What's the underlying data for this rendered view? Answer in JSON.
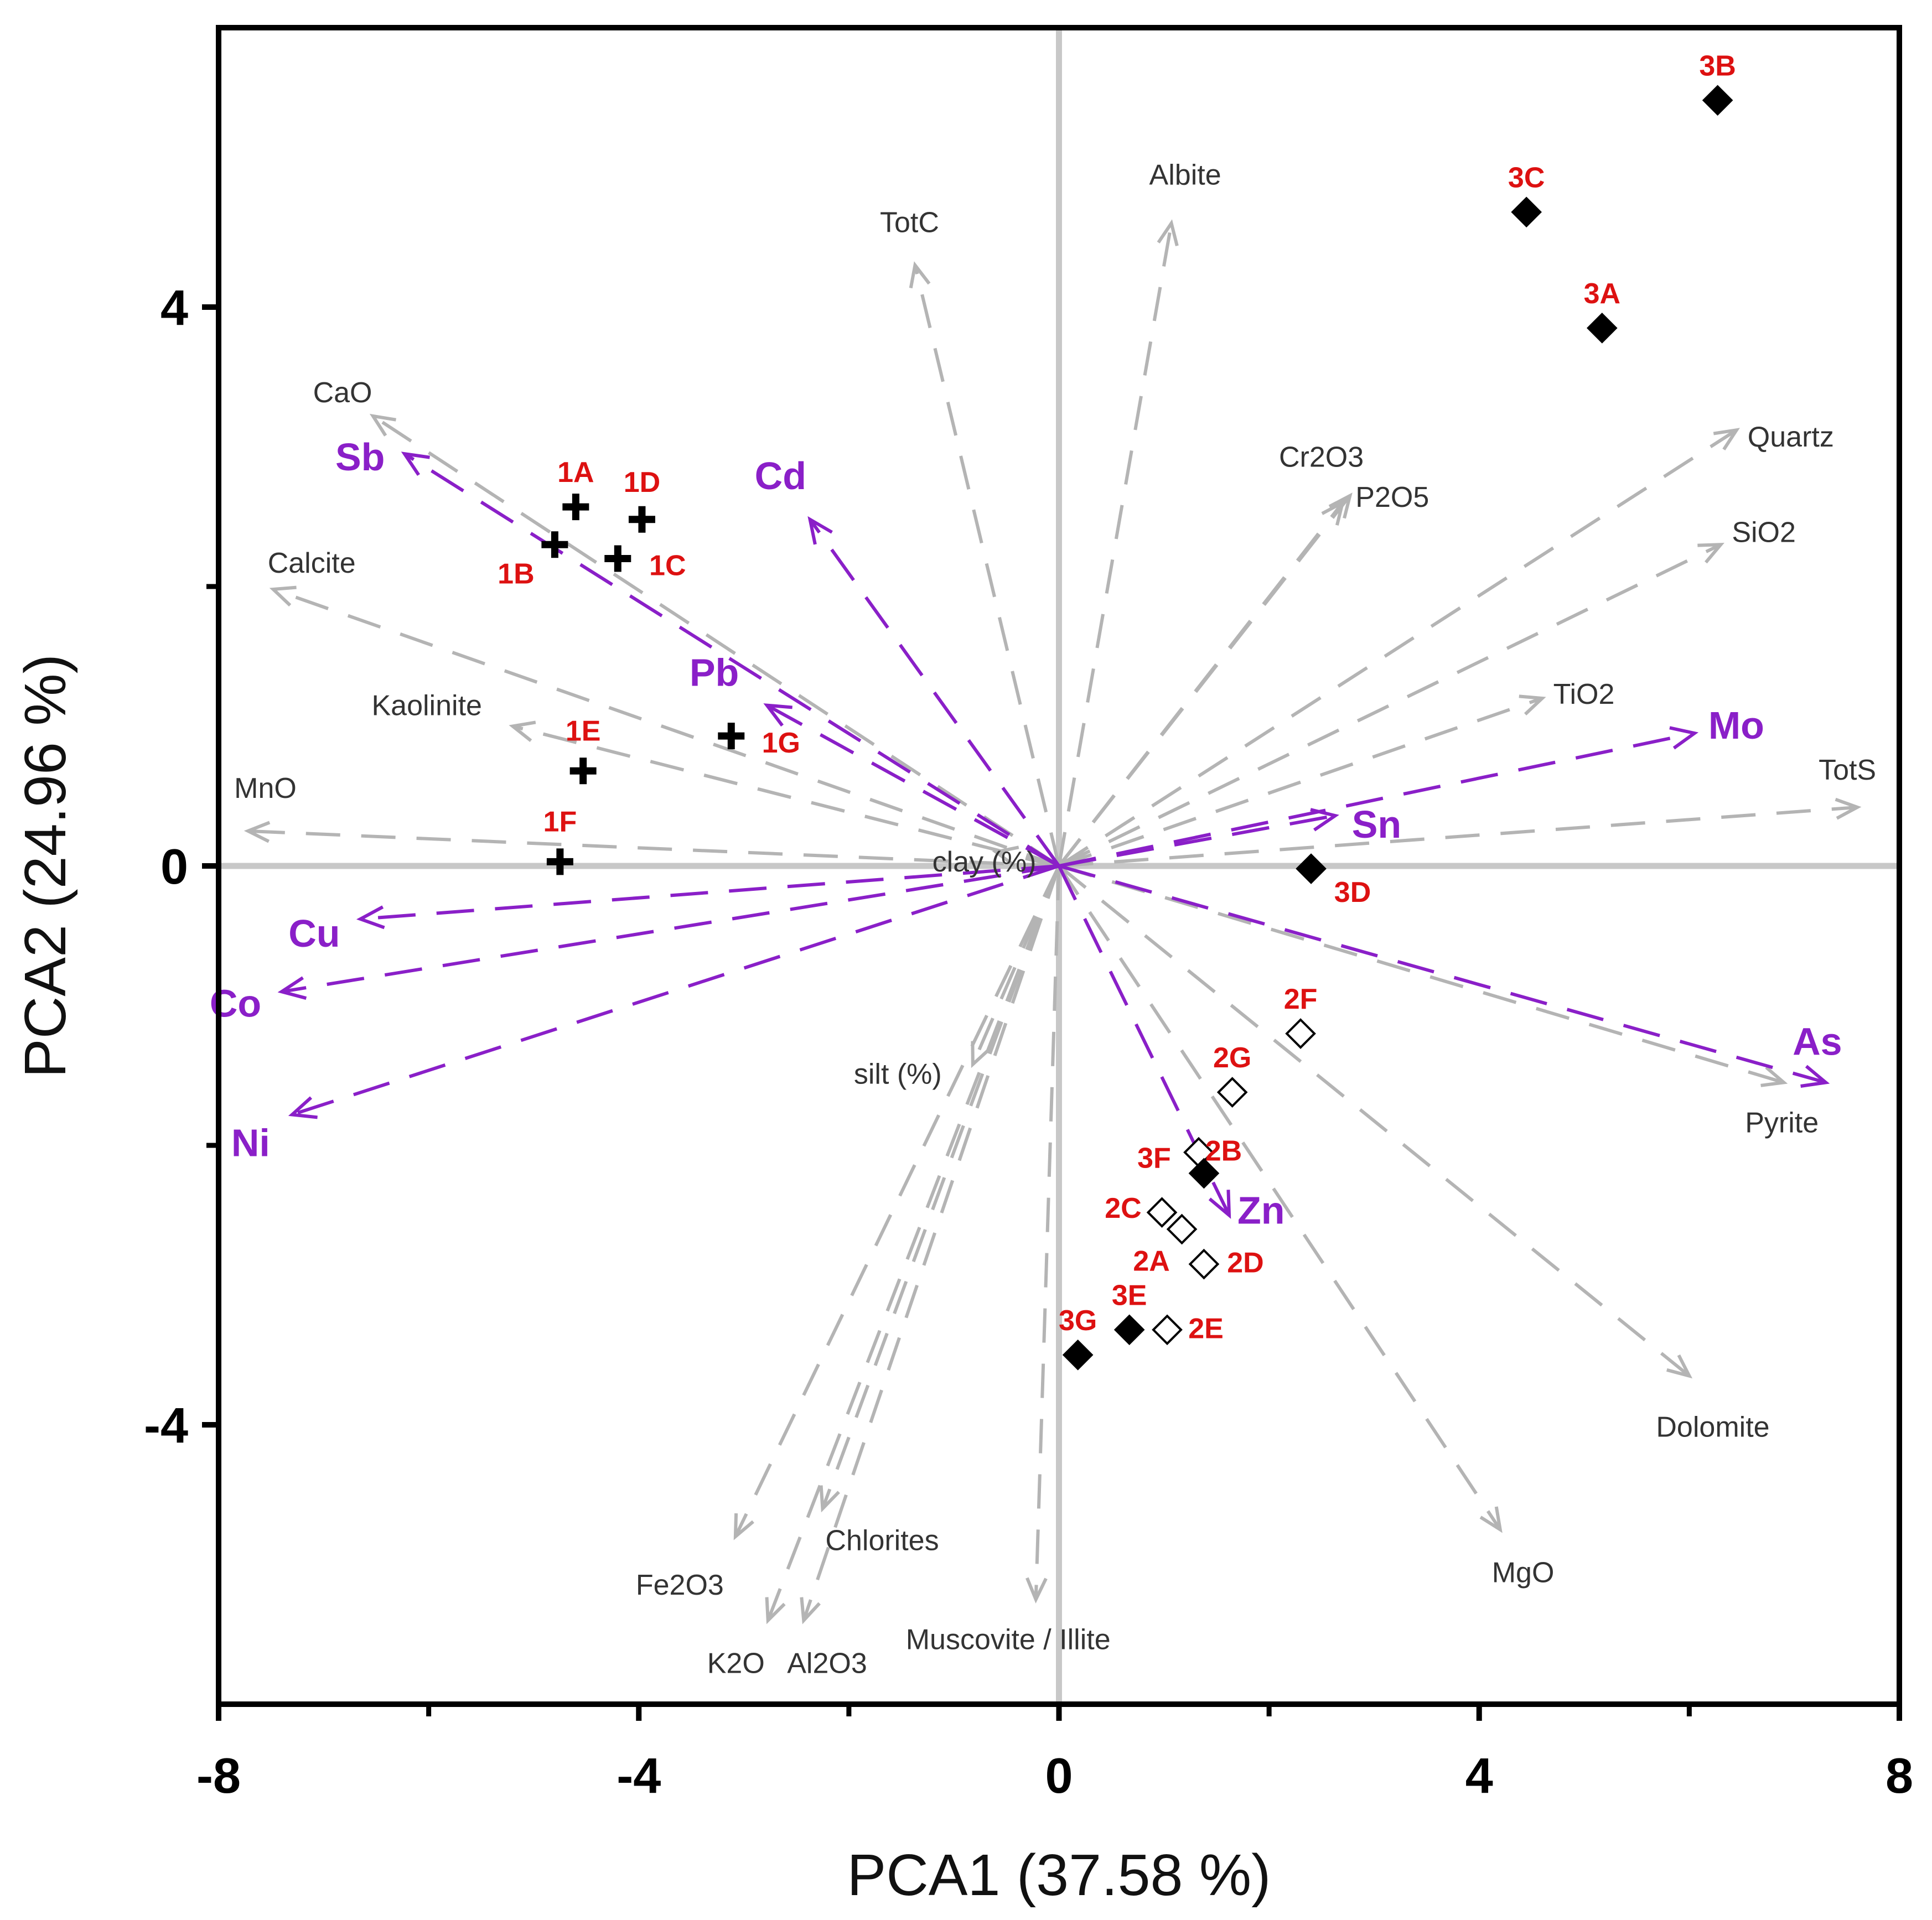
{
  "colors": {
    "frame": "#000000",
    "background": "#ffffff",
    "zero_line": "#c8c8c8",
    "variable_arrow": "#b4b4b4",
    "metal_arrow": "#8a1fc8",
    "metal_label": "#8a1fc8",
    "sample_label": "#dd1111",
    "variable_label": "#333333"
  },
  "chart_data": {
    "type": "scatter",
    "subtype": "pca-biplot",
    "title": "",
    "xlabel": "PCA1 (37.58 %)",
    "ylabel": "PCA2 (24.96 %)",
    "xlim": [
      -8,
      8
    ],
    "ylim": [
      -6,
      6
    ],
    "x_ticks": [
      -8,
      -4,
      0,
      4,
      8
    ],
    "x_tick_labels": [
      "-8",
      "-4",
      "0",
      "4",
      "8"
    ],
    "x_minor_ticks": [
      -6,
      -2,
      2,
      6
    ],
    "y_ticks": [
      4,
      0,
      -4
    ],
    "y_tick_labels": [
      "4",
      "0",
      "-4"
    ],
    "y_minor_ticks": [
      2,
      -2
    ],
    "zero_lines": true,
    "variable_vectors": [
      {
        "name": "Albite",
        "x": 1.07,
        "y": 4.6
      },
      {
        "name": "TotC",
        "x": -1.37,
        "y": 4.3
      },
      {
        "name": "CaO",
        "x": -6.53,
        "y": 3.22
      },
      {
        "name": "Calcite",
        "x": -7.48,
        "y": 1.98
      },
      {
        "name": "Kaolinite",
        "x": -5.2,
        "y": 1.0
      },
      {
        "name": "MnO",
        "x": -7.72,
        "y": 0.25
      },
      {
        "name": "clay (%)",
        "x": -0.6,
        "y": 0.1
      },
      {
        "name": "Cr2O3",
        "x": 2.7,
        "y": 2.6
      },
      {
        "name": "P2O5",
        "x": 2.77,
        "y": 2.65
      },
      {
        "name": "Quartz",
        "x": 6.45,
        "y": 3.12
      },
      {
        "name": "SiO2",
        "x": 6.3,
        "y": 2.3
      },
      {
        "name": "TiO2",
        "x": 4.6,
        "y": 1.2
      },
      {
        "name": "TotS",
        "x": 7.6,
        "y": 0.42
      },
      {
        "name": "Pyrite",
        "x": 6.9,
        "y": -1.55
      },
      {
        "name": "Dolomite",
        "x": 6.0,
        "y": -3.65
      },
      {
        "name": "MgO",
        "x": 4.2,
        "y": -4.75
      },
      {
        "name": "Muscovite / Illite",
        "x": -0.22,
        "y": -5.25
      },
      {
        "name": "Chlorites",
        "x": -2.25,
        "y": -4.6
      },
      {
        "name": "Fe2O3",
        "x": -3.08,
        "y": -4.8
      },
      {
        "name": "K2O",
        "x": -2.77,
        "y": -5.4
      },
      {
        "name": "Al2O3",
        "x": -2.43,
        "y": -5.4
      },
      {
        "name": "silt (%)",
        "x": -0.82,
        "y": -1.42
      }
    ],
    "metal_vectors": [
      {
        "name": "Sb",
        "x": -6.23,
        "y": 2.95
      },
      {
        "name": "Cd",
        "x": -2.37,
        "y": 2.48
      },
      {
        "name": "Pb",
        "x": -2.78,
        "y": 1.15
      },
      {
        "name": "Mo",
        "x": 6.05,
        "y": 0.95
      },
      {
        "name": "Sn",
        "x": 2.63,
        "y": 0.36
      },
      {
        "name": "Cu",
        "x": -6.65,
        "y": -0.38
      },
      {
        "name": "Co",
        "x": -7.4,
        "y": -0.9
      },
      {
        "name": "Ni",
        "x": -7.3,
        "y": -1.78
      },
      {
        "name": "As",
        "x": 7.3,
        "y": -1.55
      },
      {
        "name": "Zn",
        "x": 1.62,
        "y": -2.5
      }
    ],
    "samples": [
      {
        "name": "1A",
        "x": -4.6,
        "y": 2.57,
        "group": "1",
        "marker": "plus"
      },
      {
        "name": "1B",
        "x": -4.8,
        "y": 2.3,
        "group": "1",
        "marker": "plus"
      },
      {
        "name": "1C",
        "x": -4.2,
        "y": 2.2,
        "group": "1",
        "marker": "plus"
      },
      {
        "name": "1D",
        "x": -3.97,
        "y": 2.48,
        "group": "1",
        "marker": "plus"
      },
      {
        "name": "1E",
        "x": -4.53,
        "y": 0.68,
        "group": "1",
        "marker": "plus"
      },
      {
        "name": "1F",
        "x": -4.75,
        "y": 0.03,
        "group": "1",
        "marker": "plus"
      },
      {
        "name": "1G",
        "x": -3.12,
        "y": 0.93,
        "group": "1",
        "marker": "plus"
      },
      {
        "name": "2A",
        "x": 1.17,
        "y": -2.6,
        "group": "2",
        "marker": "diamond-open"
      },
      {
        "name": "2B",
        "x": 1.33,
        "y": -2.05,
        "group": "2",
        "marker": "diamond-open"
      },
      {
        "name": "2C",
        "x": 0.98,
        "y": -2.48,
        "group": "2",
        "marker": "diamond-open"
      },
      {
        "name": "2D",
        "x": 1.38,
        "y": -2.85,
        "group": "2",
        "marker": "diamond-open"
      },
      {
        "name": "2E",
        "x": 1.03,
        "y": -3.32,
        "group": "2",
        "marker": "diamond-open"
      },
      {
        "name": "2F",
        "x": 2.3,
        "y": -1.2,
        "group": "2",
        "marker": "diamond-open"
      },
      {
        "name": "2G",
        "x": 1.65,
        "y": -1.62,
        "group": "2",
        "marker": "diamond-open"
      },
      {
        "name": "3A",
        "x": 5.17,
        "y": 3.85,
        "group": "3",
        "marker": "diamond-filled"
      },
      {
        "name": "3B",
        "x": 6.27,
        "y": 5.48,
        "group": "3",
        "marker": "diamond-filled"
      },
      {
        "name": "3C",
        "x": 4.45,
        "y": 4.68,
        "group": "3",
        "marker": "diamond-filled"
      },
      {
        "name": "3D",
        "x": 2.4,
        "y": -0.02,
        "group": "3",
        "marker": "diamond-filled"
      },
      {
        "name": "3E",
        "x": 0.67,
        "y": -3.32,
        "group": "3",
        "marker": "diamond-filled"
      },
      {
        "name": "3F",
        "x": 1.38,
        "y": -2.2,
        "group": "3",
        "marker": "diamond-filled"
      },
      {
        "name": "3G",
        "x": 0.18,
        "y": -3.5,
        "group": "3",
        "marker": "diamond-filled"
      }
    ]
  }
}
